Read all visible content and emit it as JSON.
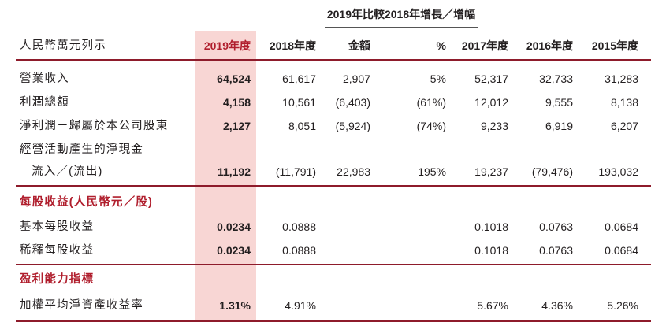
{
  "top_header": "2019年比較2018年增長／增幅",
  "unit_label": "人民幣萬元列示",
  "columns": [
    "2019年度",
    "2018年度",
    "金額",
    "%",
    "2017年度",
    "2016年度",
    "2015年度"
  ],
  "rows": [
    {
      "label": "營業收入",
      "values": [
        "64,524",
        "61,617",
        "2,907",
        "5%",
        "52,317",
        "32,733",
        "31,283"
      ]
    },
    {
      "label": "利潤總額",
      "values": [
        "4,158",
        "10,561",
        "(6,403)",
        "(61%)",
        "12,012",
        "9,555",
        "8,138"
      ]
    },
    {
      "label": "淨利潤－歸屬於本公司股東",
      "values": [
        "2,127",
        "8,051",
        "(5,924)",
        "(74%)",
        "9,233",
        "6,919",
        "6,207"
      ]
    },
    {
      "label": "經營活動產生的淨現金"
    },
    {
      "label": "流入／(流出)",
      "values": [
        "11,192",
        "(11,791)",
        "22,983",
        "195%",
        "19,237",
        "(79,476)",
        "193,032"
      ]
    }
  ],
  "section_eps": {
    "title": "每股收益(人民幣元／股)",
    "rows": [
      {
        "label": "基本每股收益",
        "values": [
          "0.0234",
          "0.0888",
          null,
          null,
          "0.1018",
          "0.0763",
          "0.0684"
        ]
      },
      {
        "label": "稀釋每股收益",
        "values": [
          "0.0234",
          "0.0888",
          null,
          null,
          "0.1018",
          "0.0763",
          "0.0684"
        ]
      }
    ]
  },
  "section_profit": {
    "title": "盈利能力指標",
    "rows": [
      {
        "label": "加權平均淨資產收益率",
        "values": [
          "1.31%",
          "4.91%",
          null,
          null,
          "5.67%",
          "4.36%",
          "5.26%"
        ]
      }
    ]
  },
  "colors": {
    "accent": "#b01e2d",
    "highlight": "#f8d6d4",
    "rule": "#8e1b2b"
  }
}
